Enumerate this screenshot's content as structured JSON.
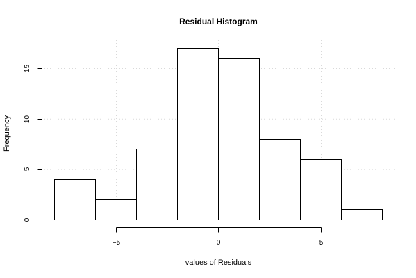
{
  "chart_data": {
    "type": "bar",
    "title": "Residual Histogram",
    "xlabel": "values of Residuals",
    "ylabel": "Frequency",
    "bins": [
      {
        "x0": -8,
        "x1": -6,
        "count": 4
      },
      {
        "x0": -6,
        "x1": -4,
        "count": 2
      },
      {
        "x0": -4,
        "x1": -2,
        "count": 7
      },
      {
        "x0": -2,
        "x1": 0,
        "count": 17
      },
      {
        "x0": 0,
        "x1": 2,
        "count": 16
      },
      {
        "x0": 2,
        "x1": 4,
        "count": 8
      },
      {
        "x0": 4,
        "x1": 6,
        "count": 6
      },
      {
        "x0": 6,
        "x1": 8,
        "count": 1
      }
    ],
    "x_ticks": [
      -5,
      0,
      5
    ],
    "x_tick_labels": [
      "−5",
      "0",
      "5"
    ],
    "y_ticks": [
      0,
      5,
      10,
      15
    ],
    "y_tick_labels": [
      "0",
      "5",
      "10",
      "15"
    ],
    "xlim": [
      -8,
      8
    ],
    "ylim": [
      0,
      17
    ],
    "grid": true,
    "grid_x": [
      -5,
      0,
      5
    ],
    "grid_y": [
      5,
      10,
      15
    ]
  }
}
